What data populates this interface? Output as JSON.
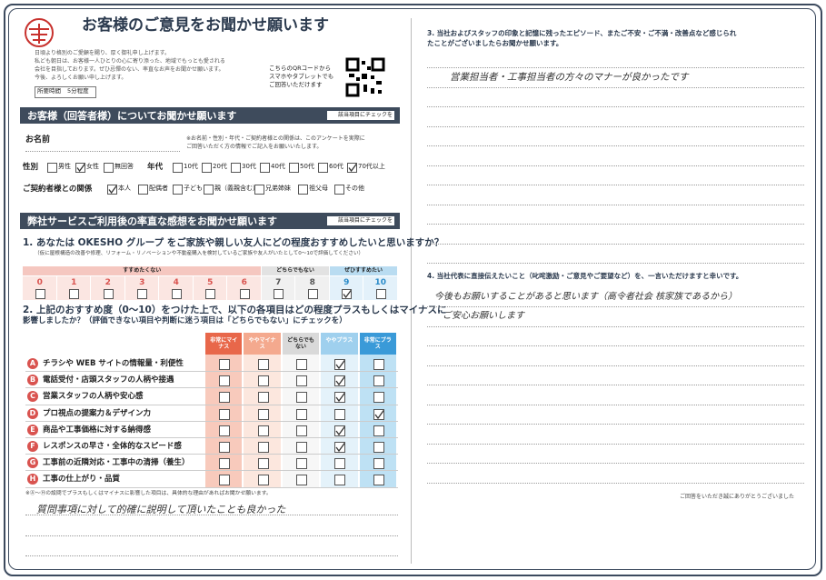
{
  "left": {
    "title": "お客様のご意見をお聞かせ願います",
    "intro": [
      "日頃より格別のご愛顧を賜り、厚く御礼申し上げます。",
      "私ども朝日は、お客様一人ひとりの心に寄り添った、地域でもっとも愛される",
      "会社を目指しております。ぜひ忌憚のない、率直なお声をお聞かせ願います。",
      "今後、よろしくお願い申し上げます。"
    ],
    "time_label": "所要時間",
    "time_value": "5分程度",
    "qr_text": [
      "こちらのQRコードから",
      "スマホやタブレットでも",
      "ご回答いただけます"
    ],
    "section1": {
      "title": "お客様（回答者様）についてお聞かせ願います",
      "hint": "該当項目にチェックを",
      "name_label": "お名前",
      "name_note": [
        "※お名前・性別・年代・ご契約者様との関係は、このアンケートを実際に",
        "ご回答いただく方の情報でご記入をお願いいたします。"
      ],
      "gender": {
        "label": "性別",
        "options": [
          {
            "text": "男性",
            "checked": false
          },
          {
            "text": "女性",
            "checked": true
          },
          {
            "text": "無回答",
            "checked": false
          }
        ]
      },
      "age": {
        "label": "年代",
        "options": [
          {
            "text": "10代",
            "checked": false
          },
          {
            "text": "20代",
            "checked": false
          },
          {
            "text": "30代",
            "checked": false
          },
          {
            "text": "40代",
            "checked": false
          },
          {
            "text": "50代",
            "checked": false
          },
          {
            "text": "60代",
            "checked": false
          },
          {
            "text": "70代以上",
            "checked": true
          }
        ]
      },
      "relation": {
        "label": "ご契約者様との関係",
        "options": [
          {
            "text": "本人",
            "checked": true
          },
          {
            "text": "配偶者",
            "checked": false
          },
          {
            "text": "子ども",
            "checked": false
          },
          {
            "text": "親（義親含む）",
            "checked": false
          },
          {
            "text": "兄弟姉妹",
            "checked": false
          },
          {
            "text": "祖父母",
            "checked": false
          },
          {
            "text": "その他",
            "checked": false
          }
        ]
      }
    },
    "section2": {
      "title": "弊社サービスご利用後の率直な感想をお聞かせ願います",
      "hint": "該当項目にチェックを",
      "q1": {
        "title": "1. あなたは OKESHO グループ をご家族や親しい友人にどの程度おすすめしたいと思いますか？",
        "note": "（仮に屋根構造の改善や修理、リフォーム・リノベーションや不動産購入を検討しているご家族や友人がいたとして0〜10で評価してください）",
        "scale_labels": [
          "すすめたくない",
          "どちらでもない",
          "ぜひすすめたい"
        ],
        "scale": [
          {
            "score": 0,
            "checked": false
          },
          {
            "score": 1,
            "checked": false
          },
          {
            "score": 2,
            "checked": false
          },
          {
            "score": 3,
            "checked": false
          },
          {
            "score": 4,
            "checked": false
          },
          {
            "score": 5,
            "checked": false
          },
          {
            "score": 6,
            "checked": false
          },
          {
            "score": 7,
            "checked": false
          },
          {
            "score": 8,
            "checked": false
          },
          {
            "score": 9,
            "checked": true
          },
          {
            "score": 10,
            "checked": false
          }
        ]
      },
      "q2": {
        "title": [
          "2. 上記のおすすめ度（0〜10）をつけた上で、以下の各項目はどの程度プラスもしくはマイナスに",
          "影響しましたか？（評価できない項目や判断に迷う項目は「どちらでもない」にチェックを）"
        ],
        "columns": [
          "非常にマイナス",
          "ややマイナス",
          "どちらでもない",
          "ややプラス",
          "非常にプラス"
        ],
        "rows": [
          {
            "letter": "A",
            "text": "チラシや WEB サイトの情報量・利便性",
            "checked": [
              false,
              false,
              false,
              true,
              false
            ]
          },
          {
            "letter": "B",
            "text": "電話受付・店頭スタッフの人柄や接遇",
            "checked": [
              false,
              false,
              false,
              true,
              false
            ]
          },
          {
            "letter": "C",
            "text": "営業スタッフの人柄や安心感",
            "checked": [
              false,
              false,
              false,
              true,
              false
            ]
          },
          {
            "letter": "D",
            "text": "プロ視点の提案力＆デザイン力",
            "checked": [
              false,
              false,
              false,
              false,
              true
            ]
          },
          {
            "letter": "E",
            "text": "商品や工事価格に対する納得感",
            "checked": [
              false,
              false,
              false,
              true,
              false
            ]
          },
          {
            "letter": "F",
            "text": "レスポンスの早さ・全体的なスピード感",
            "checked": [
              false,
              false,
              false,
              true,
              false
            ]
          },
          {
            "letter": "G",
            "text": "工事前の近隣対応・工事中の清掃（養生）",
            "checked": [
              false,
              false,
              false,
              false,
              false
            ]
          },
          {
            "letter": "H",
            "text": "工事の仕上がり・品質",
            "checked": [
              false,
              false,
              false,
              false,
              false
            ]
          }
        ],
        "footnote": "※Ⓐ〜Ⓗの設問でプラスもしくはマイナスに影響した項目は、具体的な理由があればお聞かせ願います。",
        "answer": "質問事項に対して的確に説明して頂いたことも良かった"
      }
    }
  },
  "right": {
    "q3": {
      "title": [
        "3. 当社およびスタッフの印象と記憶に残ったエピソード、またご不安・ご不満・改善点など感じられ",
        "たことがございましたらお聞かせ願います。"
      ],
      "answer": [
        "営業担当者・工事担当者の方々のマナーが良かったです"
      ]
    },
    "q4": {
      "title": [
        "4. 当社代表に直接伝えたいこと（叱咤激励・ご意見やご要望など）を、一言いただけますと幸いです。"
      ],
      "answer": [
        "今後もお願いすることがあると思います（高令者社会 核家族であるから）",
        "ご安心お願いします"
      ]
    },
    "thanks": "ご回答をいただき誠にありがとうございました"
  }
}
